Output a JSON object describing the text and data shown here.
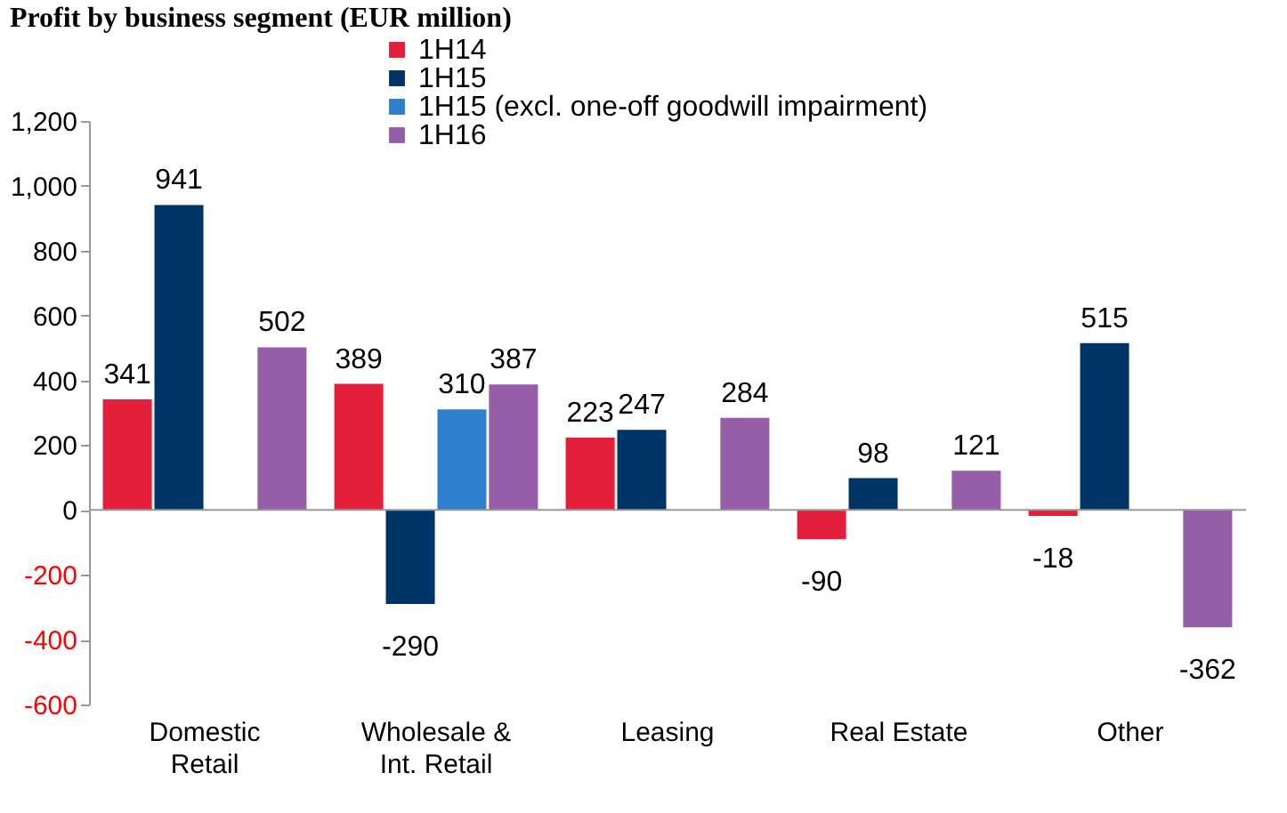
{
  "chart_data": {
    "type": "bar",
    "title": "Profit by business segment (EUR million)",
    "categories": [
      "Domestic\nRetail",
      "Wholesale &\nInt. Retail",
      "Leasing",
      "Real Estate",
      "Other"
    ],
    "series": [
      {
        "name": "1H14",
        "color": "#e31f3a",
        "values": [
          341,
          389,
          223,
          -90,
          -18
        ]
      },
      {
        "name": "1H15",
        "color": "#003366",
        "values": [
          941,
          -290,
          247,
          98,
          515
        ]
      },
      {
        "name": "1H15 (excl. one-off goodwill impairment)",
        "color": "#2f7fd0",
        "values": [
          null,
          310,
          null,
          null,
          null
        ]
      },
      {
        "name": "1H16",
        "color": "#955ea6",
        "values": [
          502,
          387,
          284,
          121,
          -362
        ]
      }
    ],
    "ylim": [
      -600,
      1200
    ],
    "yticks": [
      -600,
      -400,
      -200,
      0,
      200,
      400,
      600,
      800,
      {
        "value": 1000,
        "label": "1,000"
      },
      {
        "value": 1200,
        "label": "1,200"
      }
    ],
    "data_labels": true,
    "legend": "top"
  }
}
